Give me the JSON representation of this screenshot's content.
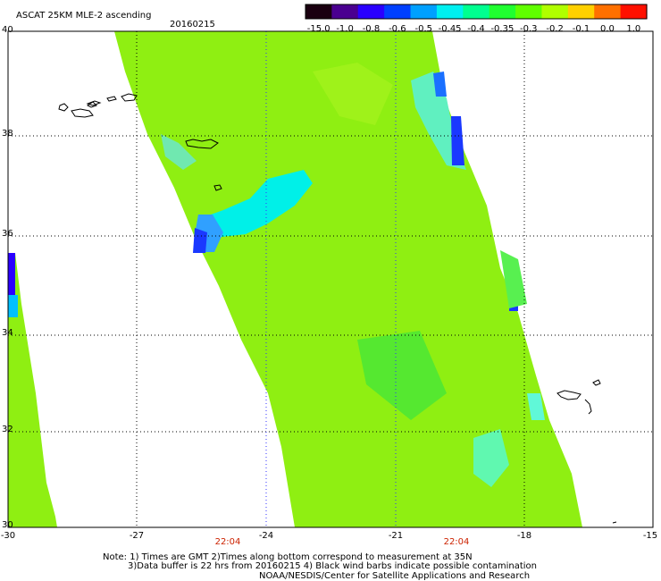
{
  "title": "ASCAT 25KM MLE-2 ascending",
  "date": "20160215",
  "colorbar": {
    "labels": [
      "-15.0",
      "-1.0",
      "-0.8",
      "-0.6",
      "-0.5",
      "-0.45",
      "-0.4",
      "-0.35",
      "-0.3",
      "-0.2",
      "-0.1",
      "0.0",
      "1.0"
    ],
    "colors": [
      "#1a0010",
      "#4a0090",
      "#2a00ff",
      "#0040ff",
      "#00a0ff",
      "#00f0f0",
      "#00ff90",
      "#20ff30",
      "#60ff00",
      "#b0ff00",
      "#ffd000",
      "#ff7000",
      "#ff1000"
    ]
  },
  "axes": {
    "lat_labels": [
      "40",
      "38",
      "36",
      "34",
      "32",
      "30"
    ],
    "lon_labels": [
      "-30",
      "-27",
      "-24",
      "-21",
      "-18",
      "-15"
    ]
  },
  "times": [
    "22:04",
    "22:04"
  ],
  "notes": {
    "line1": "Note: 1) Times are GMT 2)Times along bottom correspond to measurement at 35N",
    "line2": "3)Data buffer is 22 hrs from 20160215 4) Black wind barbs indicate possible contamination",
    "line3": "NOAA/NESDIS/Center for Satellite Applications and Research"
  }
}
